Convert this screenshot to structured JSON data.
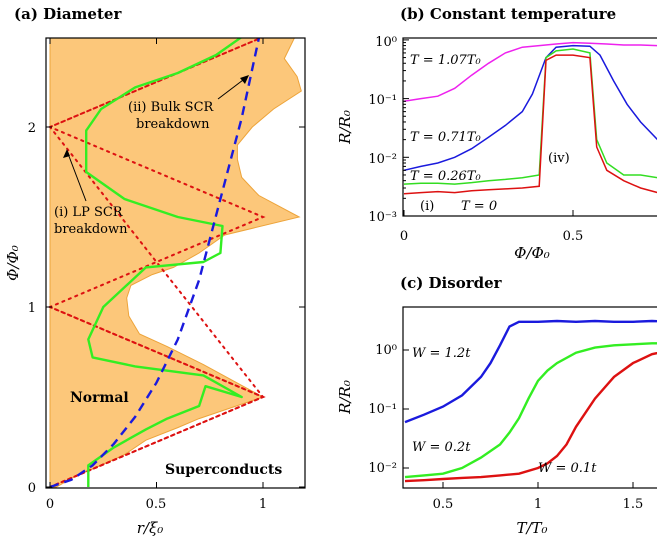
{
  "chart_data": [
    {
      "id": "a",
      "type": "area",
      "title": "(a) Diameter",
      "xlabel": "r/ξ₀",
      "ylabel": "Φ/Φ₀",
      "xlim": [
        0,
        1.18
      ],
      "ylim": [
        0,
        2.5
      ],
      "xticks": [
        "0",
        "0.5",
        "1"
      ],
      "yticks": [
        "0",
        "1",
        "2"
      ],
      "region_labels": {
        "normal": "Normal",
        "superconducts": "Superconducts"
      },
      "annotations": {
        "lp_line1": "(i) LP SCR",
        "lp_line2": "breakdown",
        "bulk_line1": "(ii) Bulk SCR",
        "bulk_line2": "breakdown"
      },
      "colors": {
        "fill": "#fcc77a",
        "edge": "#eda43a",
        "green": "#33ee22",
        "blue": "#1a1add",
        "red": "#dd1111"
      },
      "phase_boundary": {
        "r": [
          0.03,
          0.12,
          0.2,
          0.35,
          0.45,
          0.6,
          0.7,
          0.8,
          1.0,
          0.72,
          0.55,
          0.42,
          0.37,
          0.36,
          0.38,
          0.48,
          0.58,
          0.7,
          0.82,
          1.17,
          0.98,
          0.9,
          0.88,
          0.88,
          0.95,
          1.05,
          1.18,
          1.16,
          1.1,
          1.15
        ],
        "phi": [
          0.0,
          0.06,
          0.1,
          0.18,
          0.26,
          0.33,
          0.38,
          0.42,
          0.5,
          0.68,
          0.78,
          0.85,
          0.95,
          1.05,
          1.12,
          1.18,
          1.22,
          1.3,
          1.4,
          1.5,
          1.62,
          1.72,
          1.82,
          1.9,
          2.0,
          2.1,
          2.2,
          2.28,
          2.38,
          2.5
        ]
      },
      "lp_breakdown": {
        "r": [
          0.18,
          0.18,
          0.3,
          0.45,
          0.55,
          0.7,
          0.73,
          0.9,
          0.72,
          0.4,
          0.2,
          0.18,
          0.25,
          0.45,
          0.72,
          0.8,
          0.81,
          0.6,
          0.35,
          0.17,
          0.17,
          0.24,
          0.4,
          0.6,
          0.78,
          0.9
        ],
        "phi": [
          0.0,
          0.12,
          0.22,
          0.32,
          0.38,
          0.45,
          0.56,
          0.5,
          0.62,
          0.67,
          0.72,
          0.82,
          1.0,
          1.22,
          1.25,
          1.3,
          1.45,
          1.5,
          1.6,
          1.75,
          1.98,
          2.1,
          2.22,
          2.3,
          2.4,
          2.5
        ]
      },
      "bulk_breakdown": {
        "r": [
          0.0,
          0.1,
          0.2,
          0.3,
          0.4,
          0.5,
          0.6,
          0.7,
          0.8,
          0.9,
          1.0
        ],
        "phi": [
          0.0,
          0.04,
          0.12,
          0.24,
          0.39,
          0.58,
          0.82,
          1.15,
          1.6,
          2.05,
          2.6
        ]
      },
      "reference_lines": {
        "r": [
          0.0,
          1.0,
          0.0,
          1.0,
          0.0,
          1.0,
          0.0,
          1.0
        ],
        "phi": [
          0.0,
          0.5,
          1.0,
          1.5,
          2.0,
          1.5,
          1.0,
          0.5
        ],
        "r2": [
          0.0,
          1.0,
          0.0,
          1.0,
          0.0,
          1.0,
          0.0
        ],
        "phi2": [
          1.0,
          0.5,
          0.0,
          0.5,
          2.0,
          2.5,
          2.0
        ]
      }
    },
    {
      "id": "b",
      "type": "line",
      "title": "(b) Constant temperature",
      "xlabel": "Φ/Φ₀",
      "ylabel": "R/R₀",
      "xlim": [
        0,
        0.75
      ],
      "ylim_log10": [
        -3,
        0.1
      ],
      "xticks": [
        "0",
        "0.5"
      ],
      "yticks": [
        "10⁻³",
        "10⁻²",
        "10⁻¹",
        "10⁰"
      ],
      "labels": {
        "t107": "T = 1.07T₀",
        "t071": "T = 0.71T₀",
        "t026": "T = 0.26T₀",
        "t0": "T = 0",
        "i": "(i)",
        "iv": "(iv)"
      },
      "series": [
        {
          "name": "T = 1.07T₀",
          "color": "#ee22ee",
          "x": [
            0.0,
            0.05,
            0.1,
            0.15,
            0.2,
            0.25,
            0.3,
            0.35,
            0.4,
            0.45,
            0.5,
            0.55,
            0.6,
            0.65,
            0.7,
            0.75
          ],
          "y": [
            0.09,
            0.1,
            0.11,
            0.15,
            0.25,
            0.4,
            0.6,
            0.75,
            0.8,
            0.85,
            0.9,
            0.88,
            0.85,
            0.82,
            0.82,
            0.8
          ]
        },
        {
          "name": "T = 0.71T₀",
          "color": "#1a1add",
          "x": [
            0.0,
            0.05,
            0.1,
            0.15,
            0.2,
            0.25,
            0.3,
            0.35,
            0.38,
            0.42,
            0.45,
            0.5,
            0.55,
            0.58,
            0.62,
            0.66,
            0.7,
            0.75
          ],
          "y": [
            0.006,
            0.007,
            0.008,
            0.01,
            0.014,
            0.022,
            0.035,
            0.06,
            0.12,
            0.5,
            0.75,
            0.8,
            0.78,
            0.55,
            0.2,
            0.08,
            0.04,
            0.02
          ]
        },
        {
          "name": "T = 0.26T₀",
          "color": "#33dd22",
          "x": [
            0.0,
            0.05,
            0.1,
            0.15,
            0.2,
            0.25,
            0.3,
            0.35,
            0.4,
            0.42,
            0.45,
            0.5,
            0.55,
            0.57,
            0.6,
            0.65,
            0.7,
            0.75
          ],
          "y": [
            0.0035,
            0.0036,
            0.0036,
            0.0035,
            0.0037,
            0.004,
            0.0042,
            0.0045,
            0.005,
            0.5,
            0.65,
            0.7,
            0.6,
            0.02,
            0.008,
            0.005,
            0.005,
            0.0045
          ]
        },
        {
          "name": "T = 0",
          "color": "#dd1111",
          "x": [
            0.0,
            0.05,
            0.1,
            0.15,
            0.2,
            0.25,
            0.3,
            0.35,
            0.4,
            0.42,
            0.45,
            0.5,
            0.55,
            0.57,
            0.6,
            0.65,
            0.7,
            0.75
          ],
          "y": [
            0.0024,
            0.0025,
            0.0026,
            0.0025,
            0.0027,
            0.0028,
            0.0029,
            0.003,
            0.0032,
            0.45,
            0.55,
            0.55,
            0.5,
            0.015,
            0.006,
            0.004,
            0.003,
            0.0025
          ]
        }
      ]
    },
    {
      "id": "c",
      "type": "line",
      "title": "(c) Disorder",
      "xlabel": "T/T₀",
      "ylabel": "R/R₀",
      "xlim": [
        0.3,
        1.7
      ],
      "ylim_log10": [
        -2.3,
        0.6
      ],
      "xticks": [
        "0.5",
        "1",
        "1.5"
      ],
      "yticks": [
        "10⁻²",
        "10⁻¹",
        "10⁰"
      ],
      "labels": {
        "w12": "W = 1.2t",
        "w02": "W = 0.2t",
        "w01": "W = 0.1t"
      },
      "series": [
        {
          "name": "W = 1.2t",
          "color": "#1a1add",
          "x": [
            0.3,
            0.4,
            0.5,
            0.6,
            0.7,
            0.75,
            0.8,
            0.85,
            0.9,
            1.0,
            1.1,
            1.2,
            1.3,
            1.4,
            1.5,
            1.6,
            1.7
          ],
          "y": [
            0.06,
            0.08,
            0.11,
            0.17,
            0.35,
            0.6,
            1.2,
            2.5,
            3.0,
            3.0,
            3.1,
            3.0,
            3.1,
            3.0,
            3.0,
            3.1,
            3.0
          ]
        },
        {
          "name": "W = 0.2t",
          "color": "#33ee22",
          "x": [
            0.3,
            0.4,
            0.5,
            0.6,
            0.7,
            0.8,
            0.85,
            0.9,
            0.95,
            1.0,
            1.05,
            1.1,
            1.2,
            1.3,
            1.4,
            1.5,
            1.6,
            1.7
          ],
          "y": [
            0.007,
            0.0075,
            0.008,
            0.01,
            0.015,
            0.025,
            0.04,
            0.07,
            0.15,
            0.3,
            0.45,
            0.6,
            0.9,
            1.1,
            1.2,
            1.25,
            1.3,
            1.3
          ]
        },
        {
          "name": "W = 0.1t",
          "color": "#dd1111",
          "x": [
            0.3,
            0.4,
            0.5,
            0.6,
            0.7,
            0.8,
            0.9,
            1.0,
            1.05,
            1.1,
            1.15,
            1.2,
            1.3,
            1.4,
            1.5,
            1.6,
            1.7
          ],
          "y": [
            0.006,
            0.0062,
            0.0065,
            0.0068,
            0.007,
            0.0075,
            0.008,
            0.01,
            0.012,
            0.016,
            0.025,
            0.05,
            0.15,
            0.35,
            0.6,
            0.85,
            1.0
          ]
        }
      ]
    }
  ]
}
